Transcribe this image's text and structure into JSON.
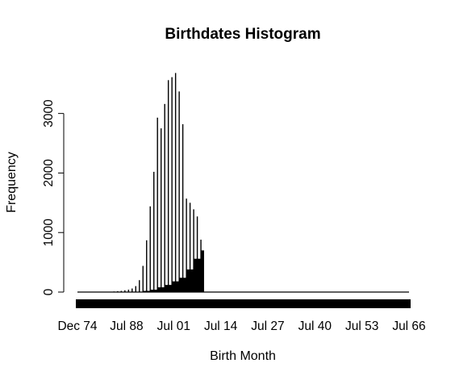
{
  "chart_data": {
    "type": "bar",
    "title": "Birthdates Histogram",
    "xlabel": "Birth Month",
    "ylabel": "Frequency",
    "xlim": [
      "1974-12",
      "2066-07"
    ],
    "ylim": [
      0,
      3700
    ],
    "y_ticks": [
      0,
      1000,
      2000,
      3000
    ],
    "y_tick_labels": [
      "0",
      "1000",
      "2000",
      "3000"
    ],
    "x_tick_labels": [
      "Dec 74",
      "Jul 88",
      "Jul 01",
      "Jul 14",
      "Jul 27",
      "Jul 40",
      "Jul 53",
      "Jul 66"
    ],
    "x_ticks": [
      "1974-12",
      "1988-07",
      "2001-07",
      "2014-07",
      "2027-07",
      "2040-07",
      "2053-07",
      "2066-07"
    ],
    "grid": false,
    "legend": "none",
    "bar_color": "#000000",
    "january_spikes": [
      {
        "x": "1985-01",
        "value": 10
      },
      {
        "x": "1986-01",
        "value": 15
      },
      {
        "x": "1987-01",
        "value": 20
      },
      {
        "x": "1988-01",
        "value": 30
      },
      {
        "x": "1989-01",
        "value": 40
      },
      {
        "x": "1990-01",
        "value": 60
      },
      {
        "x": "1991-01",
        "value": 100
      },
      {
        "x": "1992-01",
        "value": 200
      },
      {
        "x": "1993-01",
        "value": 440
      },
      {
        "x": "1994-01",
        "value": 870
      },
      {
        "x": "1995-01",
        "value": 1440
      },
      {
        "x": "1996-01",
        "value": 2020
      },
      {
        "x": "1997-01",
        "value": 2930
      },
      {
        "x": "1998-01",
        "value": 2750
      },
      {
        "x": "1999-01",
        "value": 3160
      },
      {
        "x": "2000-01",
        "value": 3560
      },
      {
        "x": "2001-01",
        "value": 3610
      },
      {
        "x": "2002-01",
        "value": 3680
      },
      {
        "x": "2003-01",
        "value": 3370
      },
      {
        "x": "2004-01",
        "value": 2820
      },
      {
        "x": "2005-01",
        "value": 1570
      },
      {
        "x": "2006-01",
        "value": 1500
      },
      {
        "x": "2007-01",
        "value": 1390
      },
      {
        "x": "2008-01",
        "value": 1270
      },
      {
        "x": "2009-01",
        "value": 880
      }
    ],
    "monthly_baseline": [
      {
        "from": "1990-01",
        "to": "1992-12",
        "approx_value": 5
      },
      {
        "from": "1993-01",
        "to": "1994-12",
        "approx_value": 20
      },
      {
        "from": "1995-01",
        "to": "1996-12",
        "approx_value": 40
      },
      {
        "from": "1997-01",
        "to": "1998-12",
        "approx_value": 80
      },
      {
        "from": "1999-01",
        "to": "2000-12",
        "approx_value": 120
      },
      {
        "from": "2001-01",
        "to": "2002-12",
        "approx_value": 180
      },
      {
        "from": "2003-01",
        "to": "2004-12",
        "approx_value": 240
      },
      {
        "from": "2005-01",
        "to": "2006-12",
        "approx_value": 380
      },
      {
        "from": "2007-01",
        "to": "2008-12",
        "approx_value": 560
      },
      {
        "from": "2009-01",
        "to": "2009-09",
        "approx_value": 700
      }
    ],
    "x_axis_rug": {
      "from": "1974-12",
      "to": "2066-07"
    }
  }
}
